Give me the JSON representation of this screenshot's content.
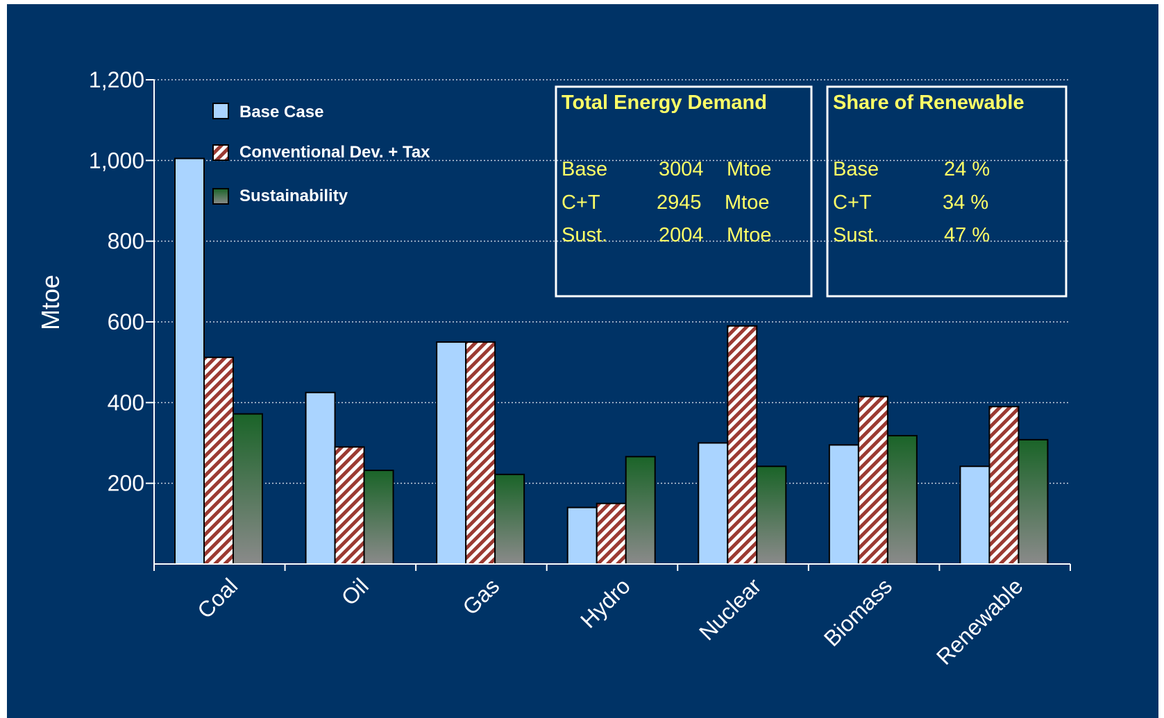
{
  "chart_data": {
    "type": "bar",
    "categories": [
      "Coal",
      "Oil",
      "Gas",
      "Hydro",
      "Nuclear",
      "Biomass",
      "Renewable"
    ],
    "series": [
      {
        "name": "Base Case",
        "values": [
          1005,
          425,
          550,
          140,
          300,
          295,
          242
        ],
        "color": "#aad4ff",
        "pattern": "solid"
      },
      {
        "name": "Conventional Dev. + Tax",
        "values": [
          512,
          290,
          550,
          150,
          590,
          415,
          390
        ],
        "color": "#9b3a32",
        "pattern": "diagonal-stripes"
      },
      {
        "name": "Sustainability",
        "values": [
          372,
          232,
          222,
          266,
          242,
          318,
          308
        ],
        "color": "#1e6b2a",
        "pattern": "green-to-gray-gradient"
      }
    ],
    "ylabel": "Mtoe",
    "xlabel": "",
    "ylim": [
      0,
      1200
    ],
    "yticks": [
      200,
      400,
      600,
      800,
      1000,
      1200
    ],
    "ytick_labels": [
      "200",
      "400",
      "600",
      "800",
      "1,000",
      "1,200"
    ],
    "grid": "horizontal dotted",
    "legend_position": "top-left",
    "annotations": [
      {
        "title": "Total Energy Demand",
        "rows": [
          {
            "label": "Base",
            "value": "3004",
            "unit": "Mtoe"
          },
          {
            "label": "C+T",
            "value": "2945",
            "unit": "Mtoe"
          },
          {
            "label": "Sust.",
            "value": "2004",
            "unit": "Mtoe"
          }
        ]
      },
      {
        "title": "Share of Renewable",
        "rows": [
          {
            "label": "Base",
            "value": "24 %"
          },
          {
            "label": "C+T",
            "value": "34 %"
          },
          {
            "label": "Sust.",
            "value": "47 %"
          }
        ]
      }
    ]
  },
  "colors": {
    "background": "#003366",
    "axis": "#ffffff",
    "annotation_text": "#ffff66"
  }
}
